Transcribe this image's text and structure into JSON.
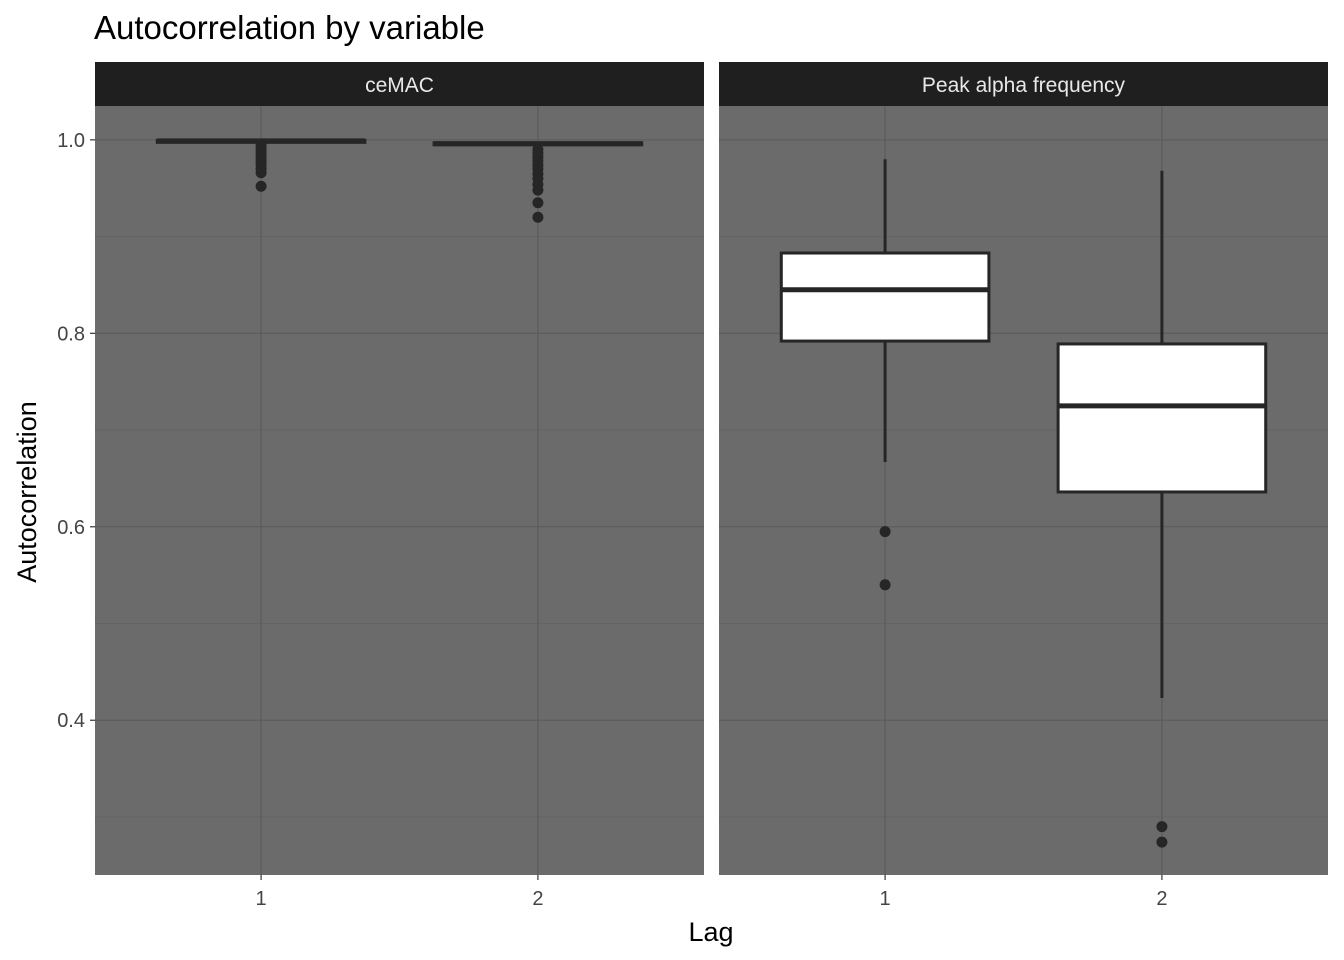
{
  "chart_data": {
    "type": "boxplot",
    "title": "Autocorrelation by variable",
    "xlabel": "Lag",
    "ylabel": "Autocorrelation",
    "categories": [
      "1",
      "2"
    ],
    "ylim": [
      0.24,
      1.035
    ],
    "y_ticks": [
      "0.4",
      "0.6",
      "0.8",
      "1.0"
    ],
    "grid": true,
    "facets": [
      {
        "name": "ceMAC",
        "boxes": [
          {
            "x": "1",
            "whisker_low": 0.998,
            "q1": 0.998,
            "median": 0.999,
            "q3": 0.9995,
            "whisker_high": 1.0,
            "outliers": [
              0.995,
              0.992,
              0.989,
              0.986,
              0.983,
              0.98,
              0.977,
              0.974,
              0.97,
              0.966,
              0.952
            ]
          },
          {
            "x": "2",
            "whisker_low": 0.994,
            "q1": 0.995,
            "median": 0.996,
            "q3": 0.997,
            "whisker_high": 0.998,
            "outliers": [
              0.99,
              0.986,
              0.982,
              0.978,
              0.974,
              0.97,
              0.965,
              0.96,
              0.954,
              0.948,
              0.935,
              0.92
            ]
          }
        ]
      },
      {
        "name": "Peak alpha frequency",
        "boxes": [
          {
            "x": "1",
            "whisker_low": 0.667,
            "q1": 0.792,
            "median": 0.845,
            "q3": 0.883,
            "whisker_high": 0.98,
            "outliers": [
              0.595,
              0.54
            ]
          },
          {
            "x": "2",
            "whisker_low": 0.423,
            "q1": 0.636,
            "median": 0.725,
            "q3": 0.789,
            "whisker_high": 0.968,
            "outliers": [
              0.29,
              0.274
            ]
          }
        ]
      }
    ],
    "colors": {
      "panel_bg": "#6b6b6b",
      "grid_major": "#5c5c5c",
      "grid_minor": "#636363",
      "strip_bg": "#1f1f1f",
      "strip_text": "#e8e8e8",
      "box_fill": "#ffffff",
      "box_line": "#262626",
      "point": "#262626"
    }
  }
}
